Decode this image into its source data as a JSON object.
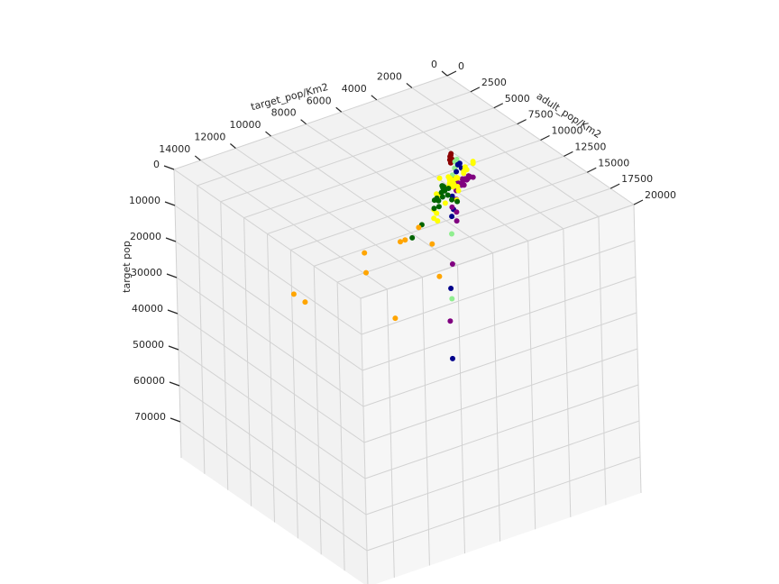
{
  "chart_data": {
    "type": "scatter",
    "projection": "3d",
    "axes": {
      "a": {
        "label": "adult_pop/Km2",
        "ticks": [
          "0",
          "2500",
          "5000",
          "7500",
          "10000",
          "12500",
          "15000",
          "17500",
          "20000"
        ],
        "range": [
          0,
          20000
        ]
      },
      "b": {
        "label": "target_pop/Km2",
        "ticks": [
          "0",
          "2000",
          "4000",
          "6000",
          "8000",
          "10000",
          "12000",
          "14000"
        ],
        "range": [
          0,
          15500
        ]
      },
      "z": {
        "label": "target pop",
        "ticks": [
          "0",
          "10000",
          "20000",
          "30000",
          "40000",
          "50000",
          "60000",
          "70000"
        ],
        "range": [
          0,
          80000
        ]
      }
    },
    "grid": true,
    "colors": [
      "#ffa500",
      "#006400",
      "#ffff00",
      "#800080",
      "#00008b",
      "#90ee90",
      "#8b0000"
    ],
    "points": [
      {
        "a": 14500,
        "b": 8200,
        "z": 16000,
        "color": "#ffa500"
      },
      {
        "a": 10500,
        "b": 6500,
        "z": 17000,
        "color": "#ffa500"
      },
      {
        "a": 15000,
        "b": 11000,
        "z": 22000,
        "color": "#ffa500"
      },
      {
        "a": 9500,
        "b": 7500,
        "z": 16000,
        "color": "#ffa500"
      },
      {
        "a": 8500,
        "b": 6200,
        "z": 16500,
        "color": "#ffa500"
      },
      {
        "a": 10000,
        "b": 10000,
        "z": 20000,
        "color": "#ffa500"
      },
      {
        "a": 8000,
        "b": 7000,
        "z": 20000,
        "color": "#ffa500"
      },
      {
        "a": 6000,
        "b": 8000,
        "z": 25000,
        "color": "#ffa500"
      },
      {
        "a": 4000,
        "b": 11000,
        "z": 35000,
        "color": "#ffa500"
      },
      {
        "a": 12000,
        "b": 14500,
        "z": 17000,
        "color": "#ffa500"
      },
      {
        "a": 8500,
        "b": 4300,
        "z": 12000,
        "color": "#006400"
      },
      {
        "a": 8500,
        "b": 4000,
        "z": 13000,
        "color": "#006400"
      },
      {
        "a": 7500,
        "b": 4000,
        "z": 13000,
        "color": "#006400"
      },
      {
        "a": 7500,
        "b": 4300,
        "z": 13000,
        "color": "#006400"
      },
      {
        "a": 7200,
        "b": 3800,
        "z": 12000,
        "color": "#006400"
      },
      {
        "a": 7000,
        "b": 4100,
        "z": 13000,
        "color": "#006400"
      },
      {
        "a": 6700,
        "b": 3900,
        "z": 12000,
        "color": "#006400"
      },
      {
        "a": 6500,
        "b": 3700,
        "z": 13000,
        "color": "#006400"
      },
      {
        "a": 6800,
        "b": 4400,
        "z": 15000,
        "color": "#006400"
      },
      {
        "a": 6200,
        "b": 3600,
        "z": 14000,
        "color": "#006400"
      },
      {
        "a": 6000,
        "b": 3500,
        "z": 14000,
        "color": "#006400"
      },
      {
        "a": 6300,
        "b": 4000,
        "z": 16000,
        "color": "#006400"
      },
      {
        "a": 6000,
        "b": 3400,
        "z": 15500,
        "color": "#006400"
      },
      {
        "a": 6500,
        "b": 4000,
        "z": 18000,
        "color": "#006400"
      },
      {
        "a": 5500,
        "b": 3500,
        "z": 19000,
        "color": "#006400"
      },
      {
        "a": 5000,
        "b": 3500,
        "z": 22000,
        "color": "#006400"
      },
      {
        "a": 4000,
        "b": 3700,
        "z": 28000,
        "color": "#006400"
      },
      {
        "a": 3500,
        "b": 4000,
        "z": 32000,
        "color": "#006400"
      },
      {
        "a": 6000,
        "b": 2700,
        "z": 13000,
        "color": "#ffff00"
      },
      {
        "a": 5700,
        "b": 2500,
        "z": 14000,
        "color": "#ffff00"
      },
      {
        "a": 5400,
        "b": 2600,
        "z": 15000,
        "color": "#ffff00"
      },
      {
        "a": 5500,
        "b": 2800,
        "z": 14000,
        "color": "#ffff00"
      },
      {
        "a": 5600,
        "b": 2900,
        "z": 14000,
        "color": "#ffff00"
      },
      {
        "a": 6000,
        "b": 2300,
        "z": 12000,
        "color": "#ffff00"
      },
      {
        "a": 5800,
        "b": 2200,
        "z": 13000,
        "color": "#ffff00"
      },
      {
        "a": 5300,
        "b": 2400,
        "z": 15000,
        "color": "#ffff00"
      },
      {
        "a": 5200,
        "b": 2700,
        "z": 16000,
        "color": "#ffff00"
      },
      {
        "a": 5100,
        "b": 2900,
        "z": 17000,
        "color": "#ffff00"
      },
      {
        "a": 5000,
        "b": 2600,
        "z": 17500,
        "color": "#ffff00"
      },
      {
        "a": 4800,
        "b": 2400,
        "z": 17000,
        "color": "#ffff00"
      },
      {
        "a": 4700,
        "b": 2200,
        "z": 18000,
        "color": "#ffff00"
      },
      {
        "a": 4600,
        "b": 2700,
        "z": 19000,
        "color": "#ffff00"
      },
      {
        "a": 5000,
        "b": 3100,
        "z": 19000,
        "color": "#ffff00"
      },
      {
        "a": 4900,
        "b": 3300,
        "z": 18500,
        "color": "#ffff00"
      },
      {
        "a": 4400,
        "b": 2300,
        "z": 19000,
        "color": "#ffff00"
      },
      {
        "a": 4200,
        "b": 2500,
        "z": 20000,
        "color": "#ffff00"
      },
      {
        "a": 4700,
        "b": 3000,
        "z": 15000,
        "color": "#ffff00"
      },
      {
        "a": 4500,
        "b": 2400,
        "z": 16000,
        "color": "#ffff00"
      },
      {
        "a": 5400,
        "b": 1900,
        "z": 13000,
        "color": "#ffff00"
      },
      {
        "a": 4000,
        "b": 3000,
        "z": 25000,
        "color": "#ffff00"
      },
      {
        "a": 4200,
        "b": 2000,
        "z": 20000,
        "color": "#ffff00"
      },
      {
        "a": 3700,
        "b": 2700,
        "z": 27000,
        "color": "#ffff00"
      },
      {
        "a": 3400,
        "b": 2500,
        "z": 30000,
        "color": "#ffff00"
      },
      {
        "a": 4700,
        "b": 2000,
        "z": 19000,
        "color": "#ffff00"
      },
      {
        "a": 4100,
        "b": 2400,
        "z": 24000,
        "color": "#ffff00"
      },
      {
        "a": 4400,
        "b": 1800,
        "z": 21000,
        "color": "#ffff00"
      },
      {
        "a": 3800,
        "b": 1600,
        "z": 25000,
        "color": "#ffff00"
      },
      {
        "a": 5200,
        "b": 1800,
        "z": 13000,
        "color": "#ffff00"
      },
      {
        "a": 4600,
        "b": 1500,
        "z": 15000,
        "color": "#ffff00"
      },
      {
        "a": 5100,
        "b": 1300,
        "z": 13000,
        "color": "#ffff00"
      },
      {
        "a": 4900,
        "b": 1200,
        "z": 13000,
        "color": "#ffff00"
      },
      {
        "a": 4400,
        "b": 1300,
        "z": 16000,
        "color": "#ffff00"
      },
      {
        "a": 3000,
        "b": 2500,
        "z": 30000,
        "color": "#ffff00"
      },
      {
        "a": 4000,
        "b": 1000,
        "z": 19000,
        "color": "#800080"
      },
      {
        "a": 3800,
        "b": 900,
        "z": 19500,
        "color": "#800080"
      },
      {
        "a": 3900,
        "b": 700,
        "z": 20000,
        "color": "#800080"
      },
      {
        "a": 3600,
        "b": 1000,
        "z": 20500,
        "color": "#800080"
      },
      {
        "a": 3700,
        "b": 1200,
        "z": 20000,
        "color": "#800080"
      },
      {
        "a": 3500,
        "b": 800,
        "z": 21000,
        "color": "#800080"
      },
      {
        "a": 3400,
        "b": 1300,
        "z": 21500,
        "color": "#800080"
      },
      {
        "a": 3300,
        "b": 1000,
        "z": 22000,
        "color": "#800080"
      },
      {
        "a": 3200,
        "b": 700,
        "z": 22000,
        "color": "#800080"
      },
      {
        "a": 3100,
        "b": 1200,
        "z": 23000,
        "color": "#800080"
      },
      {
        "a": 3000,
        "b": 900,
        "z": 23500,
        "color": "#800080"
      },
      {
        "a": 3600,
        "b": 1500,
        "z": 22000,
        "color": "#800080"
      },
      {
        "a": 2900,
        "b": 700,
        "z": 24000,
        "color": "#800080"
      },
      {
        "a": 2800,
        "b": 1100,
        "z": 25000,
        "color": "#800080"
      },
      {
        "a": 3400,
        "b": 600,
        "z": 21000,
        "color": "#800080"
      },
      {
        "a": 2600,
        "b": 1000,
        "z": 28000,
        "color": "#800080"
      },
      {
        "a": 2500,
        "b": 1200,
        "z": 30000,
        "color": "#800080"
      },
      {
        "a": 2400,
        "b": 900,
        "z": 32000,
        "color": "#800080"
      },
      {
        "a": 2200,
        "b": 800,
        "z": 35000,
        "color": "#800080"
      },
      {
        "a": 2000,
        "b": 1000,
        "z": 47000,
        "color": "#800080"
      },
      {
        "a": 1800,
        "b": 1100,
        "z": 63000,
        "color": "#800080"
      },
      {
        "a": 2000,
        "b": 450,
        "z": 20000,
        "color": "#00008b"
      },
      {
        "a": 1700,
        "b": 400,
        "z": 21000,
        "color": "#00008b"
      },
      {
        "a": 1500,
        "b": 300,
        "z": 21500,
        "color": "#00008b"
      },
      {
        "a": 1800,
        "b": 250,
        "z": 22000,
        "color": "#00008b"
      },
      {
        "a": 1600,
        "b": 450,
        "z": 23000,
        "color": "#00008b"
      },
      {
        "a": 1200,
        "b": 350,
        "z": 26000,
        "color": "#00008b"
      },
      {
        "a": 1000,
        "b": 400,
        "z": 31000,
        "color": "#00008b"
      },
      {
        "a": 900,
        "b": 300,
        "z": 35000,
        "color": "#00008b"
      },
      {
        "a": 800,
        "b": 350,
        "z": 37000,
        "color": "#00008b"
      },
      {
        "a": 700,
        "b": 450,
        "z": 57000,
        "color": "#00008b"
      },
      {
        "a": 500,
        "b": 350,
        "z": 77000,
        "color": "#00008b"
      },
      {
        "a": 1100,
        "b": 150,
        "z": 21000,
        "color": "#90ee90"
      },
      {
        "a": 1000,
        "b": 100,
        "z": 21500,
        "color": "#90ee90"
      },
      {
        "a": 900,
        "b": 150,
        "z": 22000,
        "color": "#90ee90"
      },
      {
        "a": 800,
        "b": 120,
        "z": 24000,
        "color": "#90ee90"
      },
      {
        "a": 700,
        "b": 200,
        "z": 26000,
        "color": "#90ee90"
      },
      {
        "a": 350,
        "b": 150,
        "z": 43000,
        "color": "#90ee90"
      },
      {
        "a": 300,
        "b": 200,
        "z": 61000,
        "color": "#90ee90"
      },
      {
        "a": 300,
        "b": 50,
        "z": 21000,
        "color": "#8b0000"
      },
      {
        "a": 250,
        "b": 40,
        "z": 21500,
        "color": "#8b0000"
      },
      {
        "a": 200,
        "b": 60,
        "z": 22000,
        "color": "#8b0000"
      },
      {
        "a": 350,
        "b": 30,
        "z": 22500,
        "color": "#8b0000"
      },
      {
        "a": 150,
        "b": 50,
        "z": 23000,
        "color": "#8b0000"
      },
      {
        "a": 300,
        "b": 80,
        "z": 23500,
        "color": "#8b0000"
      }
    ]
  }
}
